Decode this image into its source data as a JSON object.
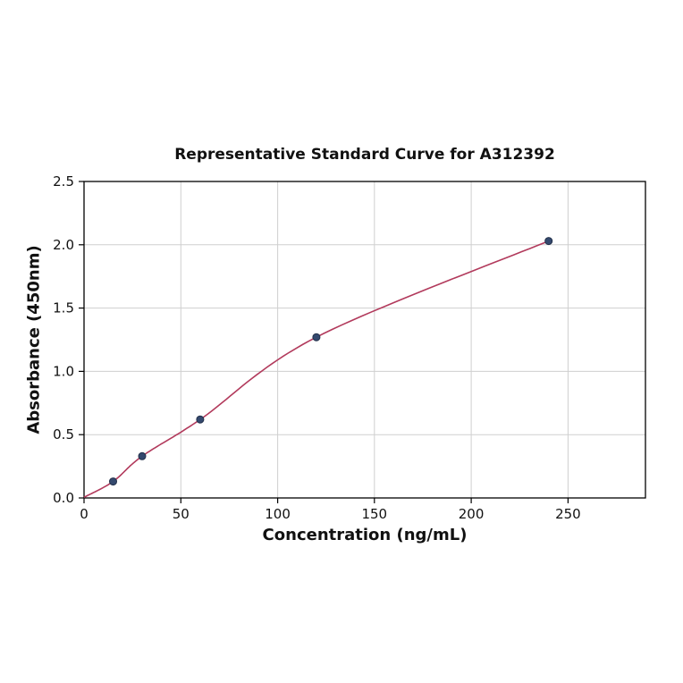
{
  "chart_data": {
    "type": "scatter",
    "title": "Representative Standard Curve for A312392",
    "xlabel": "Concentration (ng/mL)",
    "ylabel": "Absorbance (450nm)",
    "x": [
      15,
      30,
      60,
      120,
      240
    ],
    "y": [
      0.13,
      0.33,
      0.62,
      1.27,
      2.03
    ],
    "curve_start": [
      0,
      0.005
    ],
    "xlim": [
      0,
      290
    ],
    "ylim": [
      0,
      2.5
    ],
    "xticks": [
      0,
      50,
      100,
      150,
      200,
      250
    ],
    "yticks": [
      0.0,
      0.5,
      1.0,
      1.5,
      2.0,
      2.5
    ],
    "grid": true,
    "legend": "none",
    "point_color": "#34496e",
    "point_edge_color": "#22304a",
    "curve_color": "#b23a5c"
  }
}
